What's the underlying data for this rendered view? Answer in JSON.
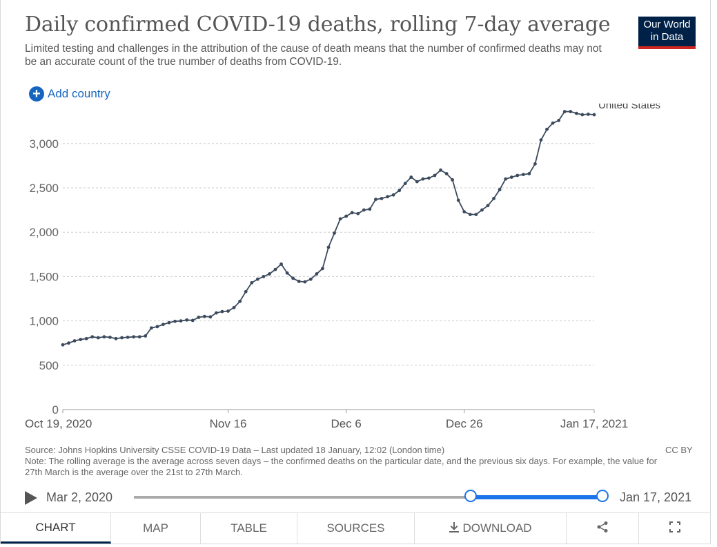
{
  "header": {
    "title": "Daily confirmed COVID-19 deaths, rolling 7-day average",
    "subtitle": "Limited testing and challenges in the attribution of the cause of death means that the number of confirmed deaths may not be an accurate count of the true number of deaths from COVID-19.",
    "logo_line1": "Our World",
    "logo_line2": "in Data",
    "add_country_label": "Add country"
  },
  "colors": {
    "line": "#3b4a5c",
    "accent": "#1a73e8",
    "logo_bg": "#002147",
    "logo_bar": "#ce261e"
  },
  "chart_data": {
    "type": "line",
    "title": "Daily confirmed COVID-19 deaths, rolling 7-day average",
    "x_start": "2020-10-19",
    "x_end": "2021-01-17",
    "x_tick_labels": [
      "Oct 19, 2020",
      "Nov 16",
      "Dec 6",
      "Dec 26",
      "Jan 17, 2021"
    ],
    "x_tick_dates": [
      "2020-10-19",
      "2020-11-16",
      "2020-12-06",
      "2020-12-26",
      "2021-01-17"
    ],
    "y_ticks": [
      0,
      500,
      1000,
      1500,
      2000,
      2500,
      3000
    ],
    "y_tick_labels": [
      "0",
      "500",
      "1,000",
      "1,500",
      "2,000",
      "2,500",
      "3,000"
    ],
    "ylim": [
      0,
      3450
    ],
    "grid": "horizontal dashed",
    "series": [
      {
        "name": "United States",
        "start_date": "2020-10-19",
        "values": [
          730,
          750,
          775,
          790,
          800,
          820,
          810,
          820,
          815,
          800,
          810,
          815,
          820,
          820,
          830,
          920,
          935,
          960,
          980,
          995,
          1000,
          1010,
          1005,
          1040,
          1050,
          1045,
          1090,
          1105,
          1110,
          1150,
          1220,
          1330,
          1430,
          1470,
          1500,
          1530,
          1580,
          1640,
          1540,
          1480,
          1445,
          1440,
          1470,
          1530,
          1590,
          1830,
          1990,
          2150,
          2180,
          2220,
          2210,
          2250,
          2260,
          2370,
          2380,
          2400,
          2420,
          2470,
          2550,
          2620,
          2570,
          2600,
          2610,
          2640,
          2700,
          2660,
          2590,
          2360,
          2230,
          2200,
          2200,
          2250,
          2300,
          2380,
          2480,
          2600,
          2620,
          2640,
          2650,
          2660,
          2770,
          3040,
          3160,
          3230,
          3260,
          3360,
          3360,
          3340,
          3325,
          3330,
          3325
        ]
      }
    ]
  },
  "footer": {
    "source": "Source: Johns Hopkins University CSSE COVID-19 Data – Last updated 18 January, 12:02 (London time)",
    "note": "Note: The rolling average is the average across seven days – the confirmed deaths on the particular date, and the previous six days. For example, the value for 27th March is the average over the 21st to 27th March.",
    "license": "CC BY"
  },
  "timeline": {
    "start_label": "Mar 2, 2020",
    "end_label": "Jan 17, 2021",
    "selected_start_fraction": 0.71,
    "selected_end_fraction": 1.0
  },
  "tabs": [
    {
      "label": "CHART",
      "active": true
    },
    {
      "label": "MAP"
    },
    {
      "label": "TABLE"
    },
    {
      "label": "SOURCES"
    },
    {
      "label": "DOWNLOAD",
      "icon": "download-icon"
    },
    {
      "label": "",
      "icon": "share-icon"
    },
    {
      "label": "",
      "icon": "fullscreen-icon"
    }
  ]
}
